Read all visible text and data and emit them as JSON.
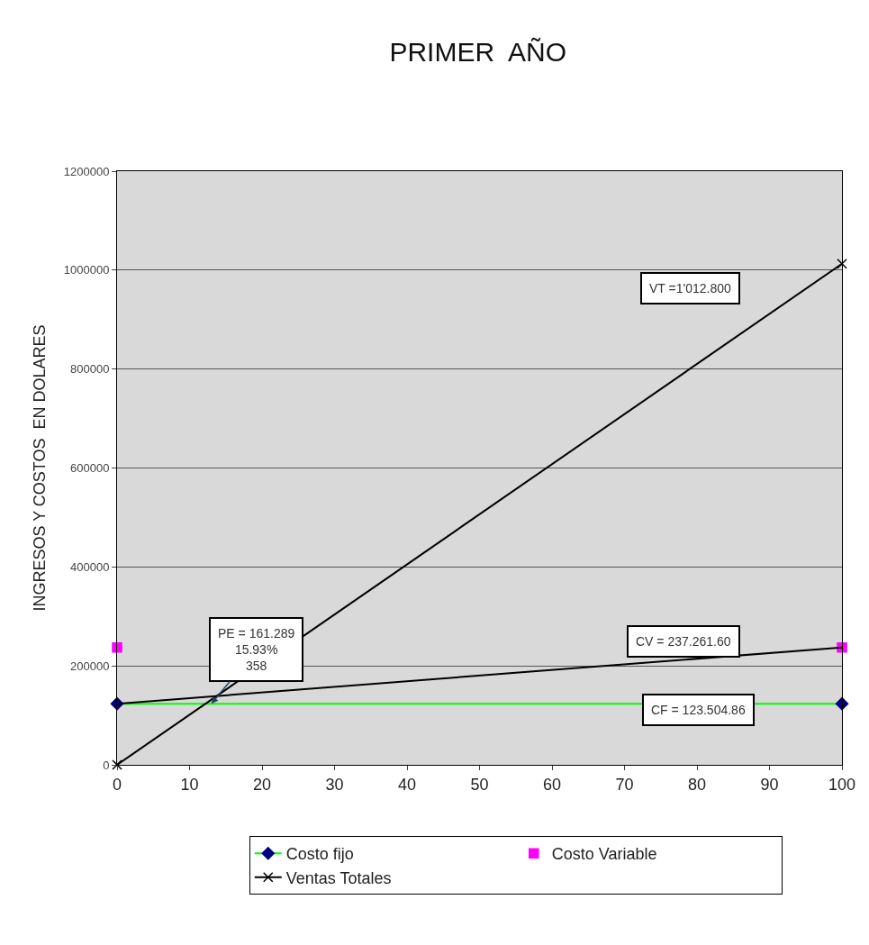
{
  "chart_data": {
    "type": "line",
    "title": "PRIMER  AÑO",
    "ylabel": "INGRESOS Y COSTOS  EN DOLARES",
    "x": [
      0,
      100
    ],
    "xlim": [
      0,
      100
    ],
    "xticks": [
      0,
      10,
      20,
      30,
      40,
      50,
      60,
      70,
      80,
      90,
      100
    ],
    "ylim": [
      0,
      1200000
    ],
    "yticks": [
      0,
      200000,
      400000,
      600000,
      800000,
      1000000,
      1200000
    ],
    "grid": "y",
    "legend": "bottom",
    "series": [
      {
        "name": "Costo fijo",
        "color": "#00ff00",
        "colors": [
          "#000080",
          "#000080"
        ],
        "marker": "diamond",
        "values": [
          123504.86,
          123504.86
        ]
      },
      {
        "name": "Costo Variable",
        "type": "scatter",
        "color": "#ff00ff",
        "marker": "square",
        "values": [
          237261.6,
          237261.6
        ]
      },
      {
        "name": "Ventas Totales",
        "color": "#000000",
        "marker": "cross",
        "values": [
          0,
          1012800
        ]
      },
      {
        "color": "#000000",
        "marker": "none",
        "values": [
          123504.86,
          237261.6
        ]
      }
    ],
    "annotations": [
      "VT =1'012.800",
      "CV = 237.261.60",
      "CF = 123.504.86",
      {
        "text": "PE = 161.289\n15.93%\n358",
        "x": 13,
        "y": 123504.86
      }
    ]
  }
}
